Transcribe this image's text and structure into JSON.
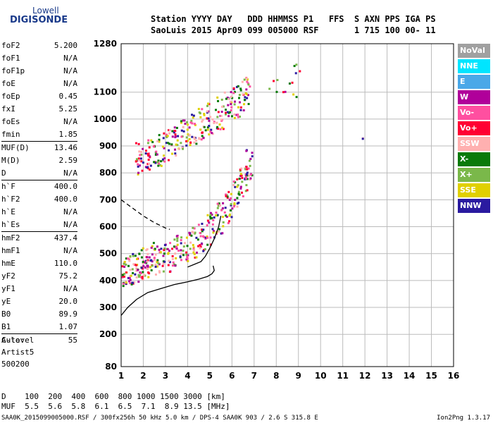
{
  "logo": {
    "top": "Lowell",
    "bottom": "DIGISONDE"
  },
  "header": {
    "line1": "Station YYYY DAY   DDD HHMMSS P1   FFS  S AXN PPS IGA PS",
    "line2": "SaoLuis 2015 Apr09 099 005000 RSF       1 715 100 00- 11"
  },
  "params": [
    {
      "name": "foF2",
      "value": "5.200"
    },
    {
      "name": "foF1",
      "value": "N/A"
    },
    {
      "name": "foF1p",
      "value": "N/A"
    },
    {
      "name": "foE",
      "value": "N/A"
    },
    {
      "name": "foEp",
      "value": "0.45"
    },
    {
      "name": "fxI",
      "value": "5.25"
    },
    {
      "name": "foEs",
      "value": "N/A"
    },
    {
      "name": "fmin",
      "value": "1.85"
    },
    {
      "sep": true
    },
    {
      "name": "MUF(D)",
      "value": "13.46"
    },
    {
      "name": "M(D)",
      "value": "2.59"
    },
    {
      "name": "D",
      "value": "N/A"
    },
    {
      "sep": true
    },
    {
      "name": "h`F",
      "value": "400.0"
    },
    {
      "name": "h`F2",
      "value": "400.0"
    },
    {
      "name": "h`E",
      "value": "N/A"
    },
    {
      "name": "h`Es",
      "value": "N/A"
    },
    {
      "sep": true
    },
    {
      "name": "hmF2",
      "value": "437.4"
    },
    {
      "name": "hmF1",
      "value": "N/A"
    },
    {
      "name": "hmE",
      "value": "110.0"
    },
    {
      "name": "yF2",
      "value": "75.2"
    },
    {
      "name": "yF1",
      "value": "N/A"
    },
    {
      "name": "yE",
      "value": "20.0"
    },
    {
      "name": "B0",
      "value": "89.9"
    },
    {
      "name": "B1",
      "value": "1.07"
    },
    {
      "sep": true
    },
    {
      "name": "C-level",
      "value": "55"
    }
  ],
  "auto": {
    "line1": "Auto:",
    "line2": "Artist5",
    "line3": "500200"
  },
  "distance_table": {
    "row1": "D    100  200  400  600  800 1000 1500 3000 [km]",
    "row2": "MUF  5.5  5.6  5.8  6.1  6.5  7.1  8.9 13.5 [MHz]"
  },
  "footer": {
    "left": "SAA0K_2015099005000.RSF / 300fx256h 50 kHz 5.0 km / DPS-4 SAA0K 903 / 2.6 S 315.8 E",
    "right": "Ion2Png 1.3.17"
  },
  "legend": [
    {
      "label": "NoVal",
      "color": "#a0a0a0"
    },
    {
      "label": "NNE",
      "color": "#00e5ff"
    },
    {
      "label": "E",
      "color": "#4aa8e8"
    },
    {
      "label": "W",
      "color": "#b0009a"
    },
    {
      "label": "Vo-",
      "color": "#ff4fa0"
    },
    {
      "label": "Vo+",
      "color": "#ff0033"
    },
    {
      "label": "SSW",
      "color": "#ffb0b0"
    },
    {
      "label": "X-",
      "color": "#0a7a0a"
    },
    {
      "label": "X+",
      "color": "#7ab84a"
    },
    {
      "label": "SSE",
      "color": "#e0d000"
    },
    {
      "label": "NNW",
      "color": "#2a1aa0"
    }
  ],
  "chart_data": {
    "type": "scatter",
    "xlim": [
      1,
      16
    ],
    "ylim": [
      80,
      1280
    ],
    "x_ticks": [
      "1",
      "2",
      "3",
      "4",
      "5",
      "6",
      "7",
      "8",
      "9",
      "10",
      "11",
      "12",
      "13",
      "14",
      "15",
      "16"
    ],
    "y_ticks": [
      "80",
      "200",
      "300",
      "400",
      "500",
      "600",
      "700",
      "800",
      "900",
      "1000",
      "1100",
      "1280"
    ],
    "grid": true,
    "series": [
      {
        "name": "profile",
        "style": "solid",
        "x": [
          1.0,
          1.3,
          1.7,
          2.2,
          2.8,
          3.4,
          4.0,
          4.5,
          4.9,
          5.1,
          5.2,
          5.15
        ],
        "y": [
          270,
          300,
          330,
          355,
          370,
          385,
          395,
          405,
          415,
          425,
          437,
          455
        ]
      },
      {
        "name": "F-trace",
        "style": "solid",
        "x": [
          4.0,
          4.3,
          4.6,
          4.8,
          5.0,
          5.2,
          5.4,
          5.5
        ],
        "y": [
          450,
          460,
          470,
          490,
          520,
          555,
          600,
          640
        ]
      },
      {
        "name": "extrapolation",
        "style": "dashed",
        "x": [
          1.0,
          1.5,
          2.0,
          2.5,
          3.0,
          3.2
        ],
        "y": [
          700,
          670,
          640,
          615,
          595,
          590
        ]
      },
      {
        "name": "F-echo-low",
        "style": "scatter",
        "x": [
          1.0,
          1.2,
          1.5,
          1.8,
          2.0,
          2.3,
          2.6,
          3.0,
          3.4,
          3.8,
          4.2,
          4.6,
          5.0,
          5.4,
          5.8,
          6.2,
          6.5,
          6.7
        ],
        "y": [
          400,
          405,
          410,
          420,
          430,
          440,
          450,
          460,
          475,
          490,
          510,
          530,
          560,
          600,
          640,
          690,
          740,
          800
        ]
      },
      {
        "name": "F-echo-high",
        "style": "scatter",
        "x": [
          1.8,
          2.2,
          2.6,
          3.0,
          3.4,
          3.8,
          4.2,
          4.6,
          5.0,
          5.4,
          5.8,
          6.2,
          6.6
        ],
        "y": [
          820,
          830,
          850,
          870,
          890,
          910,
          930,
          950,
          970,
          990,
          1010,
          1030,
          1060
        ]
      },
      {
        "name": "sparse",
        "style": "scatter",
        "x": [
          7.8,
          8.0,
          8.2,
          8.6,
          8.9,
          9.0,
          8.8,
          11.8
        ],
        "y": [
          1110,
          1150,
          1100,
          1140,
          1200,
          1180,
          1090,
          930
        ]
      }
    ]
  }
}
